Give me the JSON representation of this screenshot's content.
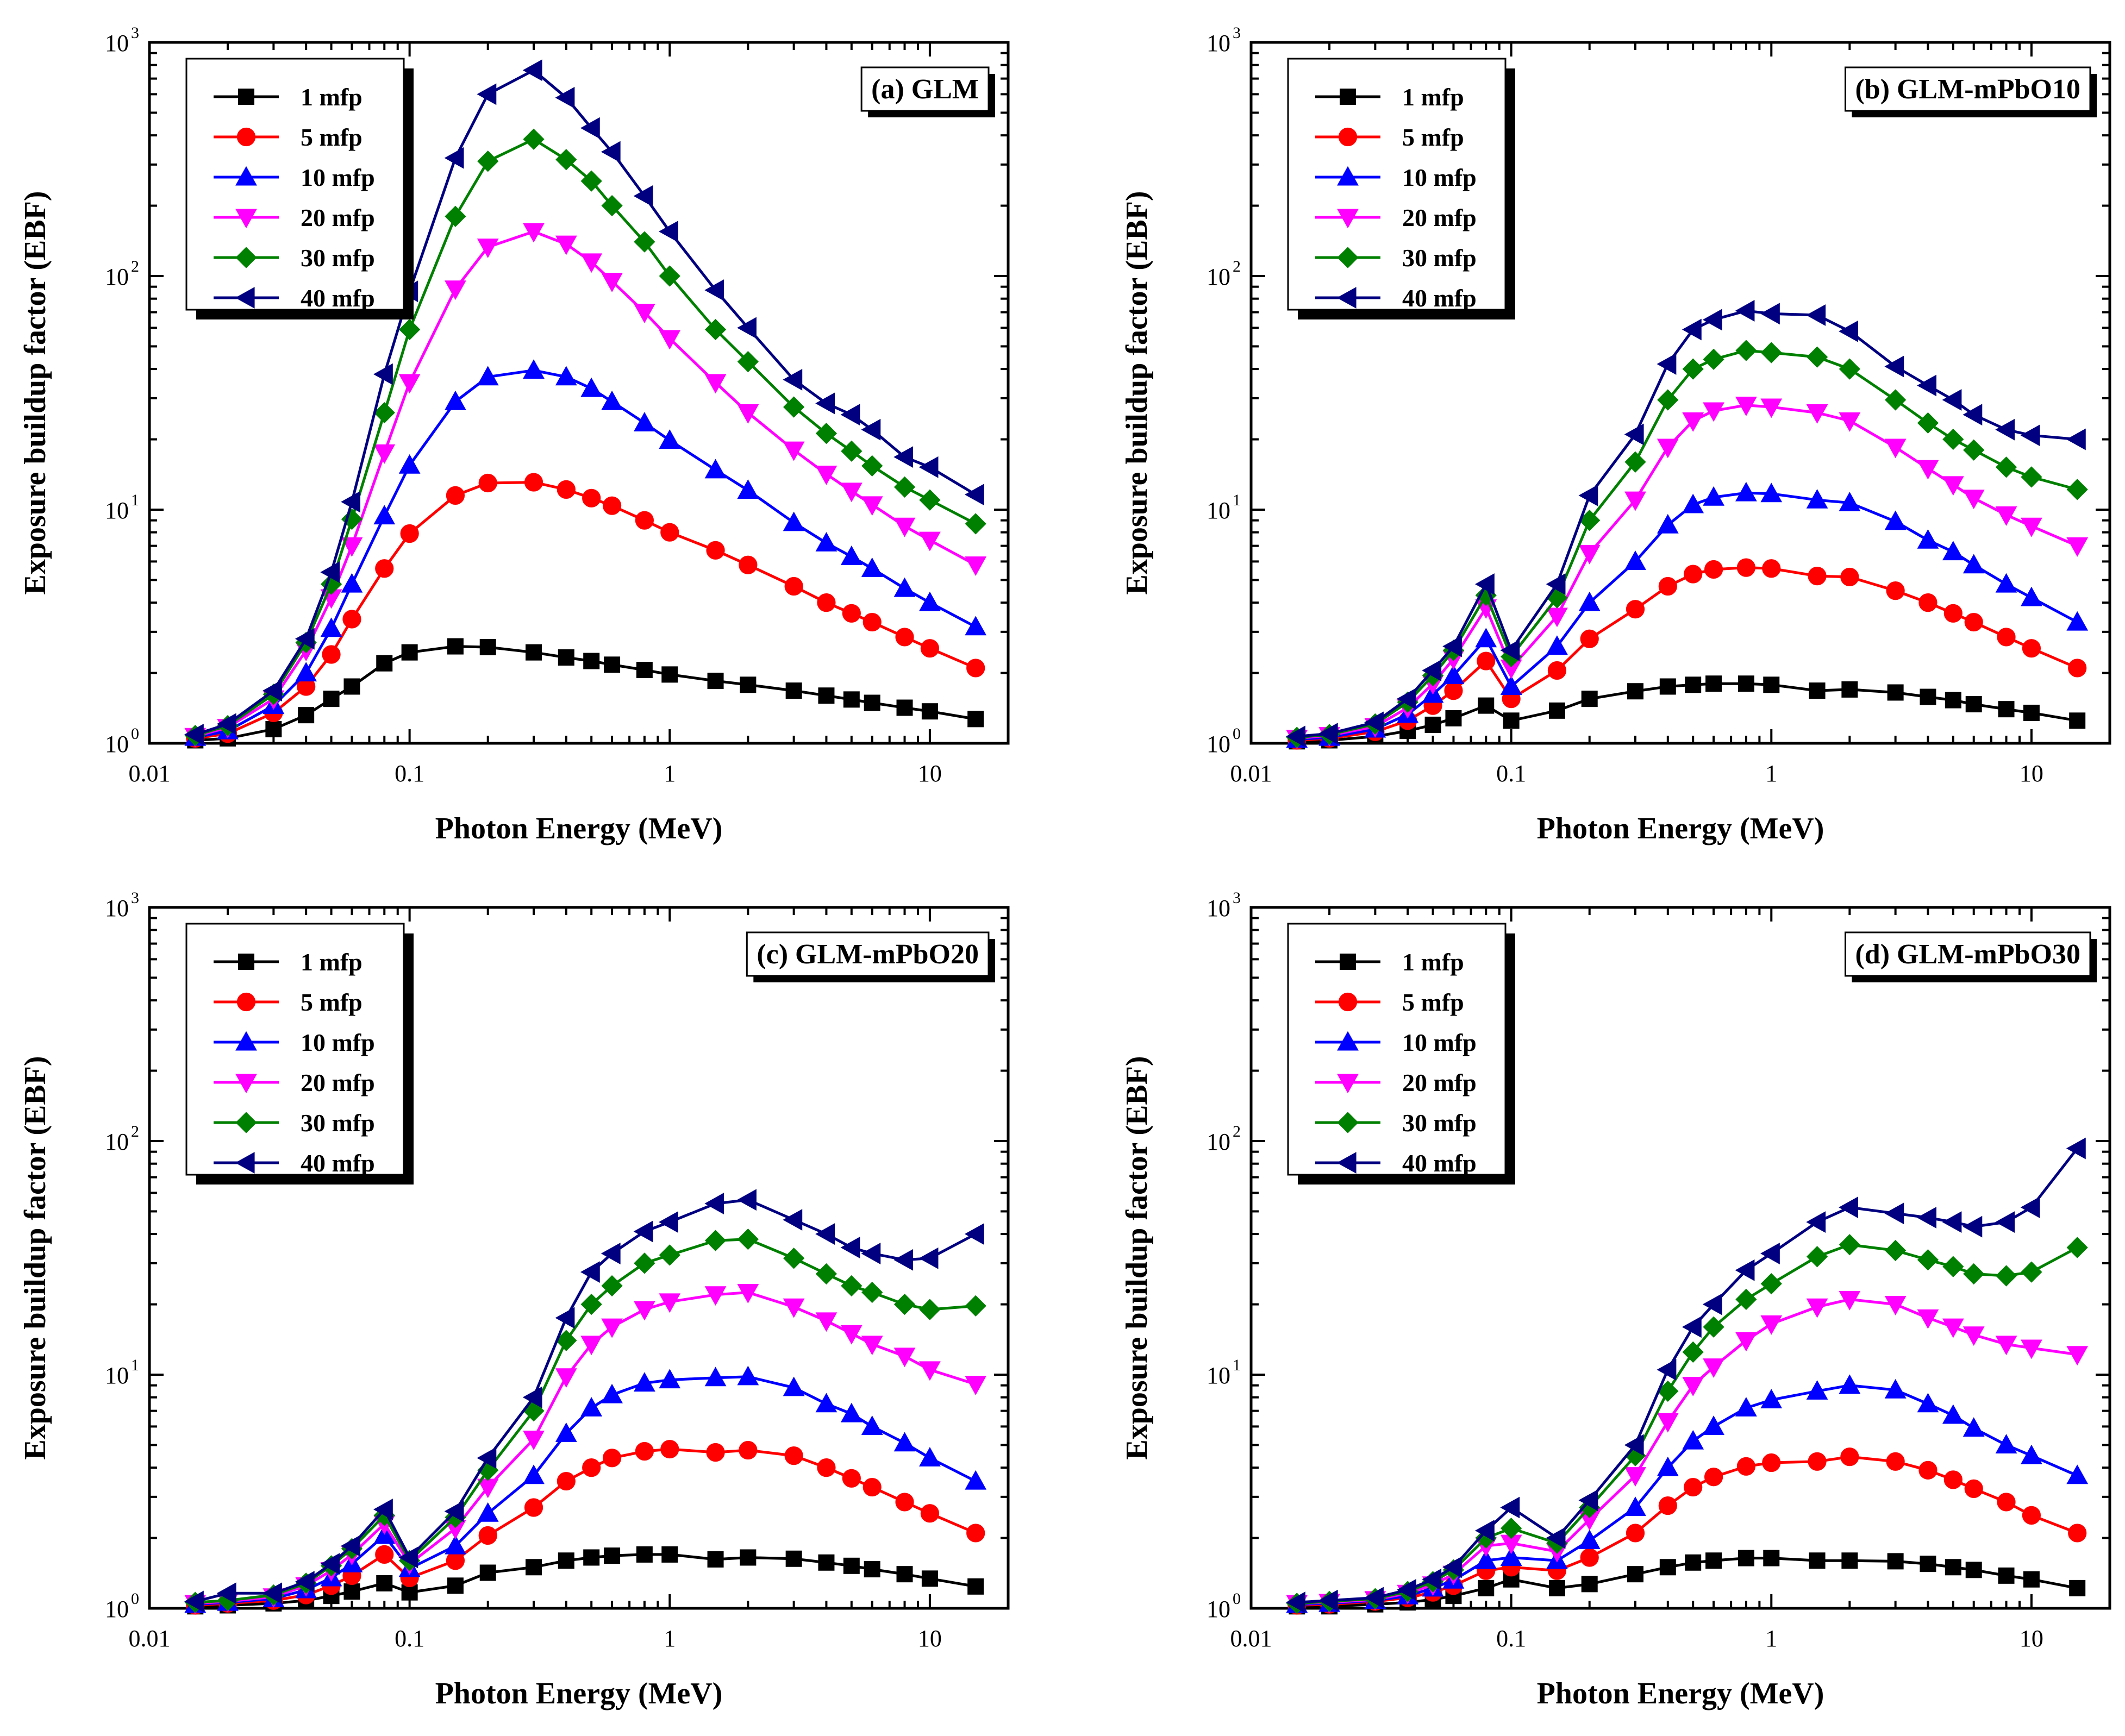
{
  "figure": {
    "series_styles": [
      {
        "label": "1 mfp",
        "color": "#000000",
        "marker": "square"
      },
      {
        "label": "5 mfp",
        "color": "#ff0000",
        "marker": "circle"
      },
      {
        "label": "10 mfp",
        "color": "#0000ff",
        "marker": "triangle-up"
      },
      {
        "label": "20 mfp",
        "color": "#ff00ff",
        "marker": "triangle-down"
      },
      {
        "label": "30 mfp",
        "color": "#008000",
        "marker": "diamond"
      },
      {
        "label": "40 mfp",
        "color": "#000080",
        "marker": "triangle-left"
      }
    ]
  },
  "chart_data": [
    {
      "type": "line",
      "title": "(a) GLM",
      "xlabel": "Photon Energy (MeV)",
      "ylabel": "Exposure buildup factor (EBF)",
      "xscale": "log",
      "yscale": "log",
      "xlim": [
        0.01,
        20
      ],
      "ylim": [
        1,
        1000
      ],
      "x_ticks": [
        "0.01",
        "0.1",
        "1",
        "10"
      ],
      "y_ticks": [
        "10",
        "10",
        "10",
        "10"
      ],
      "y_tick_exponents": [
        "0",
        "1",
        "2",
        "3"
      ],
      "legend_position": "top-left",
      "x": [
        0.015,
        0.02,
        0.03,
        0.04,
        0.05,
        0.06,
        0.08,
        0.1,
        0.15,
        0.2,
        0.3,
        0.4,
        0.5,
        0.6,
        0.8,
        1,
        1.5,
        2,
        3,
        4,
        5,
        6,
        8,
        10,
        15
      ],
      "series": [
        {
          "name": "1 mfp",
          "values": [
            1.03,
            1.05,
            1.15,
            1.32,
            1.55,
            1.75,
            2.2,
            2.45,
            2.6,
            2.58,
            2.45,
            2.33,
            2.25,
            2.17,
            2.06,
            1.97,
            1.85,
            1.78,
            1.68,
            1.6,
            1.54,
            1.49,
            1.42,
            1.37,
            1.27
          ]
        },
        {
          "name": "5 mfp",
          "values": [
            1.05,
            1.1,
            1.35,
            1.75,
            2.4,
            3.4,
            5.6,
            7.9,
            11.5,
            13,
            13.1,
            12.2,
            11.2,
            10.4,
            9.0,
            8.0,
            6.7,
            5.8,
            4.7,
            4.0,
            3.6,
            3.3,
            2.85,
            2.55,
            2.1
          ]
        },
        {
          "name": "10 mfp",
          "values": [
            1.06,
            1.13,
            1.45,
            2.0,
            3.1,
            4.8,
            9.4,
            15.5,
            29,
            37,
            39.5,
            37,
            33,
            29,
            23.5,
            19.8,
            14.8,
            12.1,
            8.8,
            7.2,
            6.3,
            5.6,
            4.6,
            4.0,
            3.15
          ]
        },
        {
          "name": "20 mfp",
          "values": [
            1.07,
            1.17,
            1.55,
            2.5,
            4.2,
            7.0,
            17.5,
            35,
            88,
            133,
            155,
            137,
            115,
            95,
            70,
            54,
            35,
            26,
            18,
            14.2,
            12,
            10.5,
            8.5,
            7.4,
            5.8
          ]
        },
        {
          "name": "30 mfp",
          "values": [
            1.08,
            1.19,
            1.62,
            2.7,
            4.8,
            9.1,
            26,
            59,
            180,
            310,
            385,
            315,
            255,
            200,
            140,
            100,
            59,
            43,
            27.5,
            21.2,
            17.8,
            15.4,
            12.5,
            11,
            8.7
          ]
        },
        {
          "name": "40 mfp",
          "values": [
            1.09,
            1.21,
            1.68,
            2.8,
            5.4,
            10.8,
            38,
            86,
            320,
            600,
            760,
            580,
            430,
            340,
            220,
            155,
            87,
            60,
            36,
            28.5,
            25.5,
            22,
            16.8,
            15.2,
            11.6
          ]
        }
      ]
    },
    {
      "type": "line",
      "title": "(b) GLM-mPbO10",
      "xlabel": "Photon Energy (MeV)",
      "ylabel": "Exposure buildup factor (EBF)",
      "xscale": "log",
      "yscale": "log",
      "xlim": [
        0.01,
        20
      ],
      "ylim": [
        1,
        1000
      ],
      "x_ticks": [
        "0.01",
        "0.1",
        "1",
        "10"
      ],
      "y_ticks": [
        "10",
        "10",
        "10",
        "10"
      ],
      "y_tick_exponents": [
        "0",
        "1",
        "2",
        "3"
      ],
      "legend_position": "top-left",
      "x": [
        0.015,
        0.02,
        0.03,
        0.04,
        0.05,
        0.06,
        0.08,
        0.1,
        0.15,
        0.2,
        0.3,
        0.4,
        0.5,
        0.6,
        0.8,
        1,
        1.5,
        2,
        3,
        4,
        5,
        6,
        8,
        10,
        15
      ],
      "series": [
        {
          "name": "1 mfp",
          "values": [
            1.02,
            1.03,
            1.07,
            1.13,
            1.2,
            1.28,
            1.45,
            1.25,
            1.38,
            1.55,
            1.67,
            1.75,
            1.78,
            1.8,
            1.8,
            1.78,
            1.68,
            1.7,
            1.65,
            1.58,
            1.53,
            1.47,
            1.4,
            1.35,
            1.25
          ]
        },
        {
          "name": "5 mfp",
          "values": [
            1.03,
            1.05,
            1.12,
            1.25,
            1.45,
            1.68,
            2.25,
            1.55,
            2.05,
            2.8,
            3.75,
            4.7,
            5.3,
            5.55,
            5.65,
            5.6,
            5.2,
            5.15,
            4.5,
            4.0,
            3.6,
            3.3,
            2.85,
            2.55,
            2.1
          ]
        },
        {
          "name": "10 mfp",
          "values": [
            1.04,
            1.06,
            1.15,
            1.33,
            1.62,
            1.95,
            2.8,
            1.75,
            2.6,
            4.0,
            6.0,
            8.6,
            10.5,
            11.3,
            11.8,
            11.7,
            11,
            10.7,
            8.9,
            7.4,
            6.6,
            5.8,
            4.8,
            4.2,
            3.3
          ]
        },
        {
          "name": "20 mfp",
          "values": [
            1.05,
            1.08,
            1.18,
            1.42,
            1.8,
            2.3,
            3.8,
            2.1,
            3.5,
            6.5,
            11,
            18.5,
            24,
            26.5,
            28,
            27.5,
            26,
            24,
            18.5,
            15,
            12.8,
            11.2,
            9.5,
            8.5,
            7.0
          ]
        },
        {
          "name": "30 mfp",
          "values": [
            1.06,
            1.09,
            1.21,
            1.5,
            1.95,
            2.5,
            4.3,
            2.35,
            4.2,
            9.0,
            16,
            29.5,
            40,
            44,
            48,
            47,
            45,
            40,
            29.5,
            23.5,
            20,
            18,
            15.2,
            13.8,
            12.2
          ]
        },
        {
          "name": "40 mfp",
          "values": [
            1.07,
            1.1,
            1.23,
            1.55,
            2.05,
            2.6,
            4.8,
            2.5,
            4.8,
            11.5,
            21,
            42,
            59,
            65,
            71,
            69,
            68,
            58,
            41,
            34,
            29.5,
            25.5,
            22,
            20.8,
            20
          ]
        }
      ]
    },
    {
      "type": "line",
      "title": "(c) GLM-mPbO20",
      "xlabel": "Photon Energy (MeV)",
      "ylabel": "Exposure buildup factor (EBF)",
      "xscale": "log",
      "yscale": "log",
      "xlim": [
        0.01,
        20
      ],
      "ylim": [
        1,
        1000
      ],
      "x_ticks": [
        "0.01",
        "0.1",
        "1",
        "10"
      ],
      "y_ticks": [
        "10",
        "10",
        "10",
        "10"
      ],
      "y_tick_exponents": [
        "0",
        "1",
        "2",
        "3"
      ],
      "legend_position": "top-left",
      "x": [
        0.015,
        0.02,
        0.03,
        0.04,
        0.05,
        0.06,
        0.08,
        0.1,
        0.15,
        0.2,
        0.3,
        0.4,
        0.5,
        0.6,
        0.8,
        1,
        1.5,
        2,
        3,
        4,
        5,
        6,
        8,
        10,
        15
      ],
      "series": [
        {
          "name": "1 mfp",
          "values": [
            1.02,
            1.03,
            1.05,
            1.08,
            1.13,
            1.18,
            1.28,
            1.17,
            1.25,
            1.42,
            1.5,
            1.6,
            1.65,
            1.68,
            1.7,
            1.7,
            1.62,
            1.65,
            1.63,
            1.57,
            1.52,
            1.47,
            1.4,
            1.34,
            1.24
          ]
        },
        {
          "name": "5 mfp",
          "values": [
            1.03,
            1.05,
            1.08,
            1.14,
            1.25,
            1.38,
            1.7,
            1.35,
            1.6,
            2.05,
            2.7,
            3.5,
            4.0,
            4.4,
            4.7,
            4.8,
            4.65,
            4.75,
            4.5,
            4.0,
            3.6,
            3.3,
            2.85,
            2.55,
            2.1
          ]
        },
        {
          "name": "10 mfp",
          "values": [
            1.04,
            1.06,
            1.1,
            1.2,
            1.35,
            1.55,
            2.05,
            1.48,
            1.85,
            2.55,
            3.7,
            5.6,
            7.2,
            8.2,
            9.2,
            9.5,
            9.7,
            9.8,
            8.8,
            7.5,
            6.8,
            6.0,
            5.1,
            4.4,
            3.5
          ]
        },
        {
          "name": "20 mfp",
          "values": [
            1.05,
            1.07,
            1.12,
            1.25,
            1.45,
            1.7,
            2.3,
            1.55,
            2.2,
            3.3,
            5.3,
            9.8,
            13.5,
            16,
            19,
            20.5,
            22,
            22.5,
            19.5,
            17,
            15,
            13.5,
            12,
            10.5,
            9.1
          ]
        },
        {
          "name": "30 mfp",
          "values": [
            1.06,
            1.08,
            1.14,
            1.28,
            1.52,
            1.8,
            2.5,
            1.6,
            2.45,
            3.9,
            7.0,
            14,
            20,
            24,
            30,
            32.5,
            37.5,
            38,
            31.5,
            27,
            24,
            22.5,
            20,
            19,
            19.7
          ]
        },
        {
          "name": "40 mfp",
          "values": [
            1.07,
            1.16,
            1.16,
            1.3,
            1.55,
            1.85,
            2.65,
            1.65,
            2.6,
            4.4,
            8.0,
            17.5,
            27.5,
            33,
            41,
            45,
            54,
            56,
            46,
            40,
            35,
            33,
            31,
            31.5,
            40
          ]
        }
      ]
    },
    {
      "type": "line",
      "title": "(d) GLM-mPbO30",
      "xlabel": "Photon Energy (MeV)",
      "ylabel": "Exposure buildup factor (EBF)",
      "xscale": "log",
      "yscale": "log",
      "xlim": [
        0.01,
        20
      ],
      "ylim": [
        1,
        1000
      ],
      "x_ticks": [
        "0.01",
        "0.1",
        "1",
        "10"
      ],
      "y_ticks": [
        "10",
        "10",
        "10",
        "10"
      ],
      "y_tick_exponents": [
        "0",
        "1",
        "2",
        "3"
      ],
      "legend_position": "top-left",
      "x": [
        0.015,
        0.02,
        0.03,
        0.04,
        0.05,
        0.06,
        0.08,
        0.1,
        0.15,
        0.2,
        0.3,
        0.4,
        0.5,
        0.6,
        0.8,
        1,
        1.5,
        2,
        3,
        4,
        5,
        6,
        8,
        10,
        15
      ],
      "series": [
        {
          "name": "1 mfp",
          "values": [
            1.02,
            1.02,
            1.04,
            1.06,
            1.09,
            1.13,
            1.22,
            1.33,
            1.22,
            1.27,
            1.4,
            1.5,
            1.57,
            1.6,
            1.64,
            1.64,
            1.6,
            1.6,
            1.59,
            1.55,
            1.5,
            1.46,
            1.38,
            1.33,
            1.22
          ]
        },
        {
          "name": "5 mfp",
          "values": [
            1.03,
            1.04,
            1.07,
            1.11,
            1.17,
            1.25,
            1.45,
            1.5,
            1.45,
            1.65,
            2.1,
            2.75,
            3.3,
            3.65,
            4.05,
            4.2,
            4.25,
            4.45,
            4.25,
            3.9,
            3.55,
            3.25,
            2.85,
            2.5,
            2.1
          ]
        },
        {
          "name": "10 mfp",
          "values": [
            1.04,
            1.05,
            1.08,
            1.13,
            1.22,
            1.32,
            1.6,
            1.65,
            1.6,
            1.95,
            2.7,
            4.0,
            5.2,
            6.0,
            7.2,
            7.8,
            8.5,
            9.0,
            8.6,
            7.5,
            6.7,
            5.9,
            5.0,
            4.5,
            3.7
          ]
        },
        {
          "name": "20 mfp",
          "values": [
            1.05,
            1.06,
            1.09,
            1.16,
            1.26,
            1.4,
            1.85,
            1.9,
            1.75,
            2.4,
            3.7,
            6.3,
            9.0,
            10.8,
            14,
            16.5,
            19.5,
            21,
            20,
            17.5,
            16,
            14.8,
            13.5,
            13,
            12.2
          ]
        },
        {
          "name": "30 mfp",
          "values": [
            1.05,
            1.07,
            1.1,
            1.18,
            1.3,
            1.46,
            2.0,
            2.2,
            1.9,
            2.7,
            4.5,
            8.5,
            12.5,
            16,
            21,
            24.5,
            32,
            36,
            34,
            31,
            29,
            27,
            26.5,
            27.5,
            35
          ]
        },
        {
          "name": "40 mfp",
          "values": [
            1.06,
            1.08,
            1.11,
            1.2,
            1.33,
            1.5,
            2.15,
            2.7,
            2.0,
            2.9,
            5.0,
            10.5,
            16,
            20,
            28,
            33,
            45,
            52,
            49,
            47,
            45,
            43,
            45,
            52,
            93
          ]
        }
      ]
    }
  ]
}
